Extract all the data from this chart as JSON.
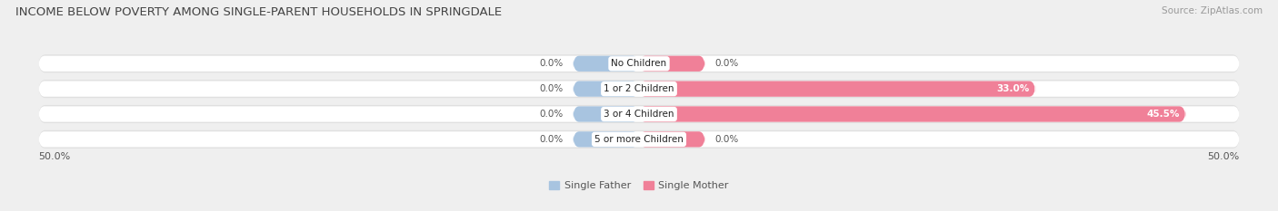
{
  "title": "INCOME BELOW POVERTY AMONG SINGLE-PARENT HOUSEHOLDS IN SPRINGDALE",
  "source": "Source: ZipAtlas.com",
  "categories": [
    "No Children",
    "1 or 2 Children",
    "3 or 4 Children",
    "5 or more Children"
  ],
  "father_values": [
    0.0,
    0.0,
    0.0,
    0.0
  ],
  "mother_values": [
    0.0,
    33.0,
    45.5,
    0.0
  ],
  "father_color": "#a8c4e0",
  "mother_color": "#f08098",
  "axis_max": 50.0,
  "background_color": "#efefef",
  "bar_bg_color": "#ffffff",
  "bar_outer_bg": "#e0e0e0",
  "title_fontsize": 9.5,
  "label_fontsize": 7.5,
  "tick_fontsize": 8,
  "source_fontsize": 7.5,
  "bar_height": 0.62,
  "x_left_label": "50.0%",
  "x_right_label": "50.0%",
  "father_stub_value": 5.5,
  "mother_stub_value": 5.5
}
